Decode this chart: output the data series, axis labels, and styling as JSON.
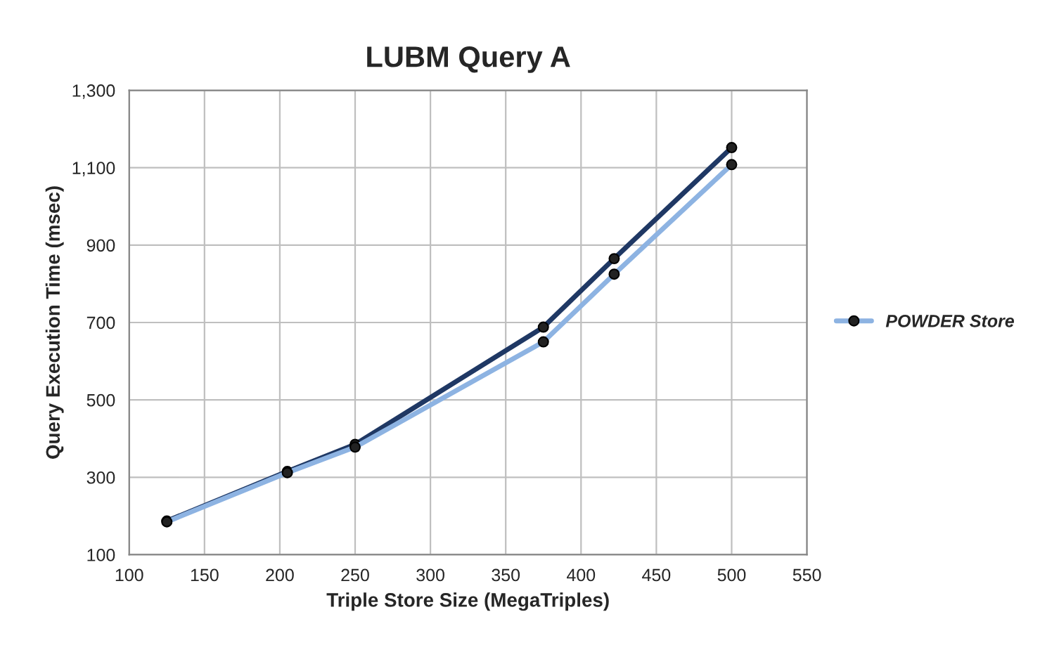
{
  "chart_data": {
    "type": "line",
    "title": "LUBM Query A",
    "xlabel": "Triple Store Size (MegaTriples)",
    "ylabel": "Query Execution Time (msec)",
    "x": [
      125,
      205,
      250,
      375,
      422,
      500
    ],
    "series": [
      {
        "color": "#1f3864",
        "values": [
          187,
          315,
          385,
          688,
          865,
          1152
        ]
      },
      {
        "name": "POWDER Store",
        "color": "#8db3e2",
        "values": [
          185,
          312,
          378,
          650,
          825,
          1108
        ]
      }
    ],
    "xlim": [
      100,
      550
    ],
    "xticks": [
      100,
      150,
      200,
      250,
      300,
      350,
      400,
      450,
      500,
      550
    ],
    "ylim": [
      100,
      1300
    ],
    "yticks": [
      100,
      300,
      500,
      700,
      900,
      {
        "value": 1100,
        "label": "1,100"
      },
      {
        "value": 1300,
        "label": "1,300"
      }
    ],
    "grid": true,
    "legend": "right",
    "marker": "circle"
  }
}
